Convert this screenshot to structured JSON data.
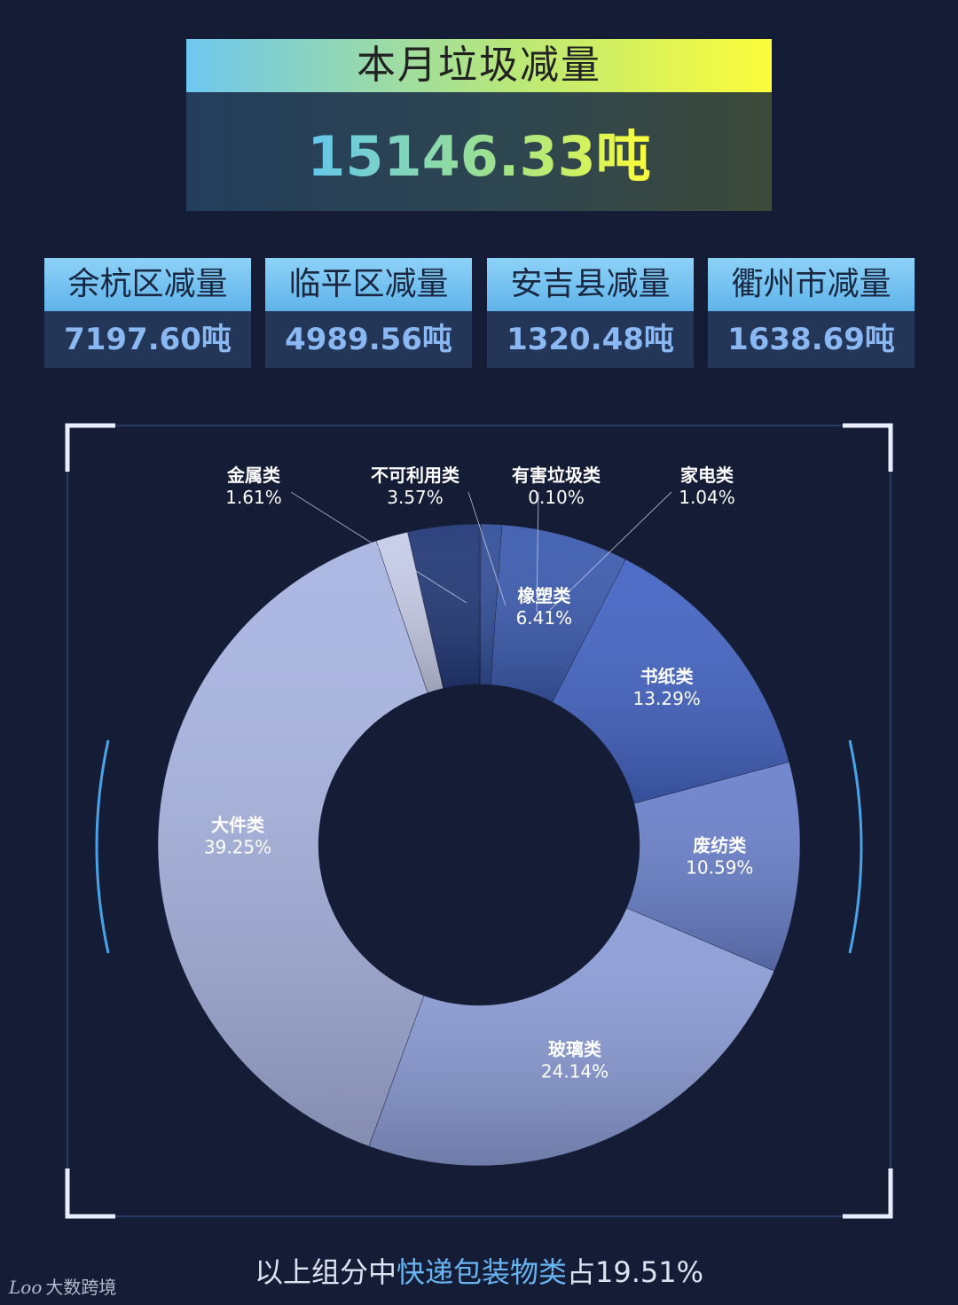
{
  "header": {
    "title": "本月垃圾减量",
    "total_value": "15146.33吨"
  },
  "districts": [
    {
      "name": "余杭区减量",
      "value": "7197.60吨"
    },
    {
      "name": "临平区减量",
      "value": "4989.56吨"
    },
    {
      "name": "安吉县减量",
      "value": "1320.48吨"
    },
    {
      "name": "衢州市减量",
      "value": "1638.69吨"
    }
  ],
  "chart_data": {
    "type": "pie",
    "title": "",
    "slices": [
      {
        "name": "有害垃圾类",
        "value": 0.1,
        "label": "0.10%",
        "color": "#29407e"
      },
      {
        "name": "家电类",
        "value": 1.04,
        "label": "1.04%",
        "color": "#33509a"
      },
      {
        "name": "橡塑类",
        "value": 6.41,
        "label": "6.41%",
        "color": "#3d5cb0"
      },
      {
        "name": "书纸类",
        "value": 13.29,
        "label": "13.29%",
        "color": "#4565c4"
      },
      {
        "name": "废纺类",
        "value": 10.59,
        "label": "10.59%",
        "color": "#6b82cc"
      },
      {
        "name": "玻璃类",
        "value": 24.14,
        "label": "24.14%",
        "color": "#8d9ed8"
      },
      {
        "name": "大件类",
        "value": 39.25,
        "label": "39.25%",
        "color": "#a9b5e2"
      },
      {
        "name": "金属类",
        "value": 1.61,
        "label": "1.61%",
        "color": "#c7cde8"
      },
      {
        "name": "不可利用类",
        "value": 3.57,
        "label": "3.57%",
        "color": "#243a78"
      }
    ]
  },
  "footnote": {
    "prefix": "以上组分中",
    "highlight": "快递包装物类",
    "suffix": "占19.51%"
  },
  "logo": {
    "mark": "Loo",
    "text": "大数跨境"
  }
}
